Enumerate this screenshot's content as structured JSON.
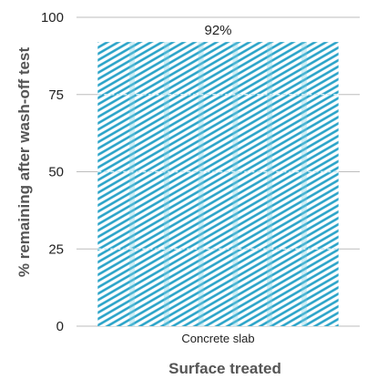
{
  "chart_data": {
    "type": "bar",
    "categories": [
      "Concrete slab"
    ],
    "values": [
      92
    ],
    "value_labels": [
      "92%"
    ],
    "title": "",
    "xlabel": "Surface treated",
    "ylabel": "% remaining after wash-off test",
    "ylim": [
      0,
      100
    ],
    "yticks": [
      0,
      25,
      50,
      75,
      100
    ],
    "grid": true,
    "legend": "none",
    "colors": {
      "bar_hatch": "#2aa3c8",
      "bar_stripe": "#7fd0e6",
      "grid": "#bdbdbd",
      "text": "#222222",
      "axis_label": "#555555"
    }
  }
}
